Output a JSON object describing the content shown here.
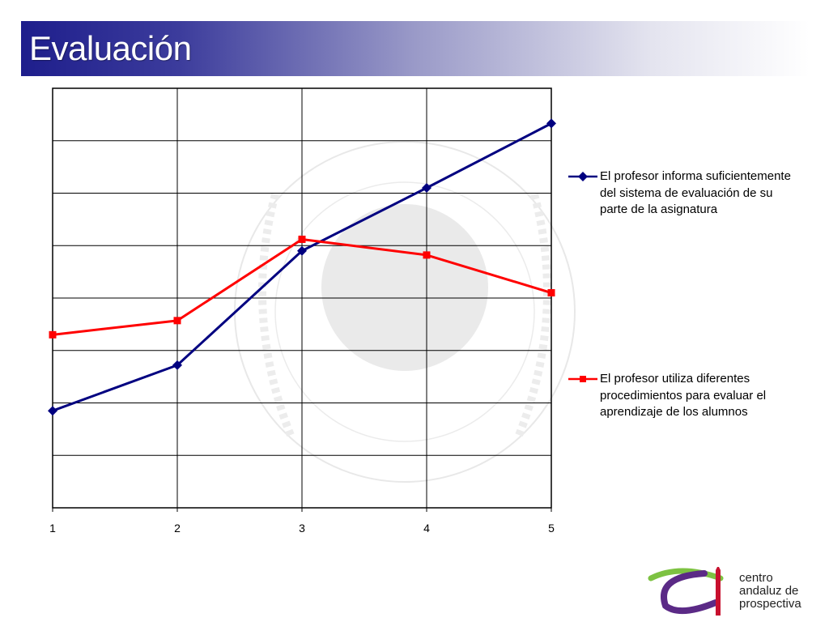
{
  "slide": {
    "title": "Evaluación"
  },
  "chart_data": {
    "type": "line",
    "title": "",
    "xlabel": "",
    "ylabel": "",
    "x": [
      1,
      2,
      3,
      4,
      5
    ],
    "ylim": [
      0,
      8
    ],
    "grid": true,
    "legend_position": "right",
    "series": [
      {
        "name": "El profesor informa suficientemente del sistema de evaluación de su parte de la asignatura",
        "color": "#000080",
        "marker": "diamond",
        "values": [
          1.85,
          2.72,
          4.9,
          6.1,
          7.33
        ]
      },
      {
        "name": "El profesor utiliza diferentes procedimientos para evaluar el aprendizaje de los alumnos",
        "color": "#ff0000",
        "marker": "square",
        "values": [
          3.3,
          3.57,
          5.12,
          4.82,
          4.1
        ]
      }
    ]
  },
  "logo": {
    "lines": [
      "centro",
      "andaluz de",
      "prospectiva"
    ],
    "colors": {
      "green": "#7dc242",
      "purple": "#5b2a86",
      "red": "#c8102e"
    }
  }
}
